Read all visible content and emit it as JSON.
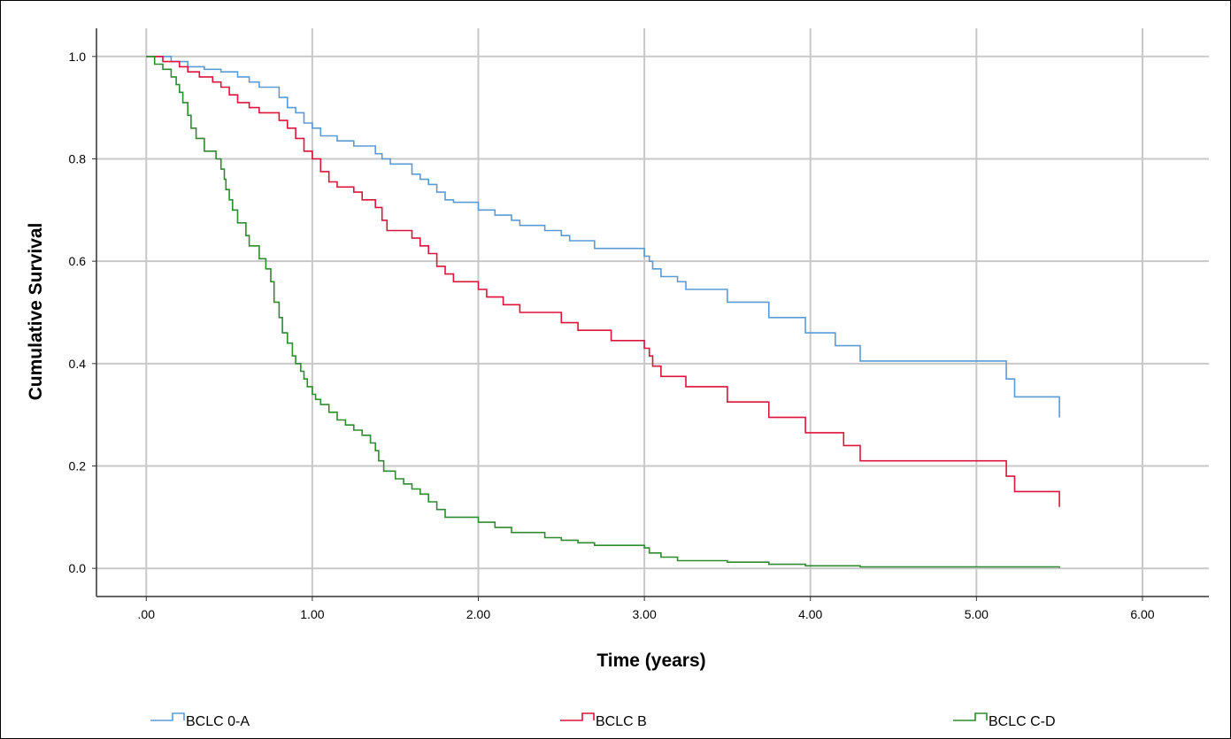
{
  "chart_data": {
    "type": "line",
    "step": true,
    "xlabel": "Time (years)",
    "ylabel": "Cumulative Survival",
    "xlim": [
      -0.3,
      6.4
    ],
    "ylim": [
      -0.055,
      1.055
    ],
    "xticks": [
      0,
      1,
      2,
      3,
      4,
      5,
      6
    ],
    "xtick_labels": [
      ".00",
      "1.00",
      "2.00",
      "3.00",
      "4.00",
      "5.00",
      "6.00"
    ],
    "yticks": [
      0,
      0.2,
      0.4,
      0.6,
      0.8,
      1.0
    ],
    "ytick_labels": [
      "0.0",
      "0.2",
      "0.4",
      "0.6",
      "0.8",
      "1.0"
    ],
    "grid": true,
    "legend_position": "bottom",
    "series": [
      {
        "name": "BCLC 0-A",
        "color": "#5b9bd5",
        "points": [
          [
            0,
            1.0
          ],
          [
            0.15,
            0.99
          ],
          [
            0.25,
            0.98
          ],
          [
            0.35,
            0.975
          ],
          [
            0.45,
            0.97
          ],
          [
            0.55,
            0.96
          ],
          [
            0.62,
            0.95
          ],
          [
            0.68,
            0.94
          ],
          [
            0.8,
            0.92
          ],
          [
            0.85,
            0.9
          ],
          [
            0.9,
            0.89
          ],
          [
            0.95,
            0.87
          ],
          [
            1.0,
            0.86
          ],
          [
            1.05,
            0.845
          ],
          [
            1.15,
            0.835
          ],
          [
            1.25,
            0.825
          ],
          [
            1.38,
            0.81
          ],
          [
            1.42,
            0.8
          ],
          [
            1.47,
            0.79
          ],
          [
            1.6,
            0.77
          ],
          [
            1.65,
            0.76
          ],
          [
            1.7,
            0.75
          ],
          [
            1.75,
            0.735
          ],
          [
            1.8,
            0.72
          ],
          [
            1.85,
            0.715
          ],
          [
            2.0,
            0.7
          ],
          [
            2.1,
            0.69
          ],
          [
            2.2,
            0.68
          ],
          [
            2.25,
            0.67
          ],
          [
            2.4,
            0.66
          ],
          [
            2.5,
            0.65
          ],
          [
            2.55,
            0.64
          ],
          [
            2.7,
            0.625
          ],
          [
            3.0,
            0.61
          ],
          [
            3.03,
            0.6
          ],
          [
            3.05,
            0.585
          ],
          [
            3.1,
            0.57
          ],
          [
            3.2,
            0.56
          ],
          [
            3.25,
            0.545
          ],
          [
            3.5,
            0.52
          ],
          [
            3.75,
            0.49
          ],
          [
            3.97,
            0.46
          ],
          [
            4.15,
            0.435
          ],
          [
            4.3,
            0.405
          ],
          [
            5.18,
            0.37
          ],
          [
            5.23,
            0.335
          ],
          [
            5.5,
            0.295
          ]
        ]
      },
      {
        "name": "BCLC B",
        "color": "#dc143c",
        "points": [
          [
            0,
            1.0
          ],
          [
            0.1,
            0.99
          ],
          [
            0.2,
            0.98
          ],
          [
            0.25,
            0.97
          ],
          [
            0.32,
            0.96
          ],
          [
            0.4,
            0.95
          ],
          [
            0.45,
            0.94
          ],
          [
            0.5,
            0.925
          ],
          [
            0.55,
            0.91
          ],
          [
            0.62,
            0.9
          ],
          [
            0.68,
            0.89
          ],
          [
            0.8,
            0.875
          ],
          [
            0.85,
            0.86
          ],
          [
            0.9,
            0.84
          ],
          [
            0.95,
            0.815
          ],
          [
            1.0,
            0.8
          ],
          [
            1.05,
            0.775
          ],
          [
            1.1,
            0.755
          ],
          [
            1.15,
            0.745
          ],
          [
            1.25,
            0.735
          ],
          [
            1.3,
            0.72
          ],
          [
            1.38,
            0.705
          ],
          [
            1.42,
            0.68
          ],
          [
            1.45,
            0.66
          ],
          [
            1.6,
            0.645
          ],
          [
            1.65,
            0.63
          ],
          [
            1.7,
            0.615
          ],
          [
            1.75,
            0.59
          ],
          [
            1.8,
            0.575
          ],
          [
            1.85,
            0.56
          ],
          [
            2.0,
            0.545
          ],
          [
            2.05,
            0.53
          ],
          [
            2.15,
            0.515
          ],
          [
            2.25,
            0.5
          ],
          [
            2.5,
            0.48
          ],
          [
            2.6,
            0.465
          ],
          [
            2.8,
            0.445
          ],
          [
            3.0,
            0.43
          ],
          [
            3.03,
            0.415
          ],
          [
            3.05,
            0.395
          ],
          [
            3.1,
            0.375
          ],
          [
            3.25,
            0.355
          ],
          [
            3.5,
            0.325
          ],
          [
            3.75,
            0.295
          ],
          [
            3.97,
            0.265
          ],
          [
            4.2,
            0.24
          ],
          [
            4.3,
            0.21
          ],
          [
            5.18,
            0.18
          ],
          [
            5.23,
            0.15
          ],
          [
            5.5,
            0.12
          ]
        ]
      },
      {
        "name": "BCLC C-D",
        "color": "#2e8b2e",
        "points": [
          [
            0,
            1.0
          ],
          [
            0.05,
            0.985
          ],
          [
            0.1,
            0.975
          ],
          [
            0.15,
            0.96
          ],
          [
            0.18,
            0.945
          ],
          [
            0.2,
            0.93
          ],
          [
            0.22,
            0.91
          ],
          [
            0.25,
            0.885
          ],
          [
            0.27,
            0.86
          ],
          [
            0.3,
            0.84
          ],
          [
            0.35,
            0.815
          ],
          [
            0.42,
            0.8
          ],
          [
            0.45,
            0.78
          ],
          [
            0.47,
            0.76
          ],
          [
            0.48,
            0.74
          ],
          [
            0.5,
            0.72
          ],
          [
            0.52,
            0.7
          ],
          [
            0.55,
            0.675
          ],
          [
            0.6,
            0.65
          ],
          [
            0.62,
            0.63
          ],
          [
            0.68,
            0.605
          ],
          [
            0.72,
            0.585
          ],
          [
            0.75,
            0.56
          ],
          [
            0.77,
            0.52
          ],
          [
            0.8,
            0.49
          ],
          [
            0.82,
            0.46
          ],
          [
            0.85,
            0.44
          ],
          [
            0.88,
            0.415
          ],
          [
            0.9,
            0.4
          ],
          [
            0.93,
            0.385
          ],
          [
            0.95,
            0.37
          ],
          [
            0.97,
            0.355
          ],
          [
            1.0,
            0.34
          ],
          [
            1.02,
            0.33
          ],
          [
            1.05,
            0.32
          ],
          [
            1.1,
            0.305
          ],
          [
            1.15,
            0.29
          ],
          [
            1.2,
            0.28
          ],
          [
            1.25,
            0.27
          ],
          [
            1.3,
            0.26
          ],
          [
            1.35,
            0.245
          ],
          [
            1.38,
            0.23
          ],
          [
            1.4,
            0.21
          ],
          [
            1.43,
            0.19
          ],
          [
            1.5,
            0.175
          ],
          [
            1.55,
            0.165
          ],
          [
            1.6,
            0.155
          ],
          [
            1.65,
            0.145
          ],
          [
            1.7,
            0.13
          ],
          [
            1.75,
            0.115
          ],
          [
            1.8,
            0.1
          ],
          [
            2.0,
            0.09
          ],
          [
            2.1,
            0.08
          ],
          [
            2.2,
            0.07
          ],
          [
            2.4,
            0.06
          ],
          [
            2.5,
            0.055
          ],
          [
            2.6,
            0.05
          ],
          [
            2.7,
            0.045
          ],
          [
            3.0,
            0.04
          ],
          [
            3.03,
            0.03
          ],
          [
            3.1,
            0.022
          ],
          [
            3.2,
            0.015
          ],
          [
            3.5,
            0.012
          ],
          [
            3.75,
            0.008
          ],
          [
            3.97,
            0.005
          ],
          [
            4.3,
            0.003
          ],
          [
            5.5,
            0.001
          ]
        ]
      }
    ]
  }
}
